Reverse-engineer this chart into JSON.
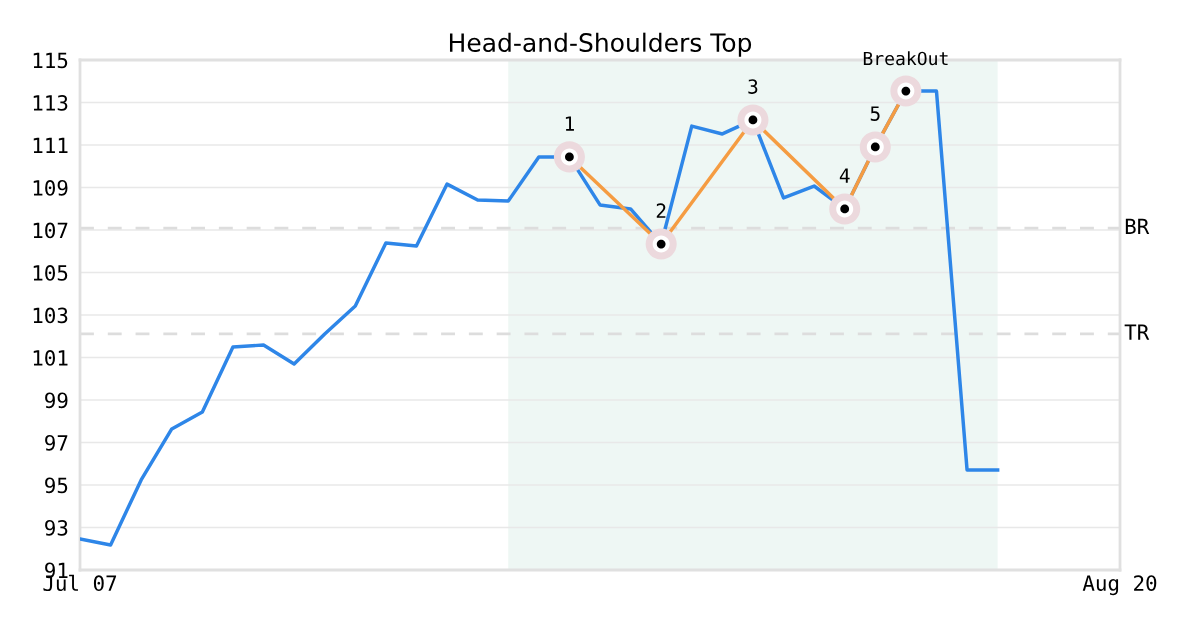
{
  "chart_data": {
    "type": "line",
    "title": "Head-and-Shoulders Top",
    "categories": [
      "Jul 07",
      null,
      null,
      null,
      null,
      null,
      null,
      null,
      null,
      null,
      null,
      null,
      null,
      null,
      null,
      null,
      null,
      null,
      null,
      null,
      null,
      null,
      null,
      null,
      null,
      null,
      null,
      null,
      null,
      null,
      null,
      null,
      null,
      null,
      "Aug 20"
    ],
    "series": [
      {
        "color": "#2e86e8",
        "values": [
          92.46,
          92.18,
          95.24,
          97.64,
          98.44,
          101.49,
          101.59,
          100.69,
          102.11,
          103.42,
          106.39,
          106.25,
          109.16,
          108.41,
          108.36,
          110.44,
          110.44,
          108.18,
          107.99,
          106.34,
          111.89,
          111.52,
          112.18,
          108.51,
          109.07,
          107.99,
          110.91,
          113.54,
          113.54,
          95.71,
          95.71,
          null,
          null,
          null,
          null
        ]
      },
      {
        "type": "line",
        "color": "#f59c42",
        "marker": "circle",
        "values": [
          null,
          null,
          null,
          null,
          null,
          null,
          null,
          null,
          null,
          null,
          null,
          null,
          null,
          null,
          null,
          null,
          110.44,
          null,
          null,
          106.34,
          null,
          null,
          112.18,
          null,
          null,
          107.99,
          110.91,
          113.54,
          null,
          null,
          null,
          null,
          null,
          null,
          null
        ]
      }
    ],
    "ylim": [
      91,
      115
    ],
    "yticks": [
      91,
      93,
      95,
      97,
      99,
      101,
      103,
      105,
      107,
      109,
      111,
      113,
      115
    ],
    "grid": "y",
    "ref_lines": [
      {
        "axis": "y",
        "value": 107.09,
        "label": "BR",
        "color": "#dddddd",
        "line_style": "dashed"
      },
      {
        "axis": "y",
        "value": 102.11,
        "label": "TR",
        "color": "#dddddd",
        "line_style": "dashed"
      }
    ],
    "annotations": [
      "1",
      "2",
      "3",
      "4",
      "5",
      "BreakOut"
    ]
  }
}
